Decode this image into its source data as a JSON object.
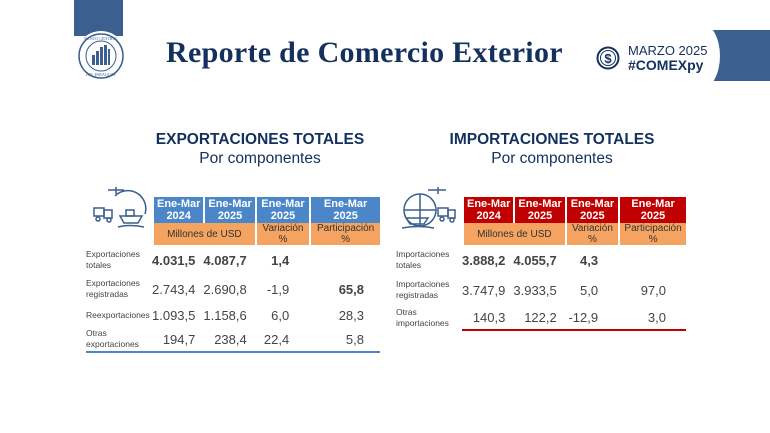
{
  "header": {
    "title": "Reporte de Comercio Exterior",
    "date": "MARZO 2025",
    "hashtag": "#COMEXpy",
    "logo_text": "BANCO CENTRAL DEL PARAGUAY",
    "brand_color": "#3b5f8e",
    "dollar_icon": "dollar-coin-icon"
  },
  "exports": {
    "title": "EXPORTACIONES TOTALES",
    "subtitle": "Por componentes",
    "accent": "#4a86c8",
    "columns": [
      "Ene-Mar\n2024",
      "Ene-Mar\n2025",
      "Ene-Mar\n2025",
      "Ene-Mar\n2025"
    ],
    "col_head": [
      "Ene-Mar",
      "2024",
      "Ene-Mar",
      "2025",
      "Ene-Mar",
      "2025",
      "Ene-Mar",
      "2025"
    ],
    "subheaders": [
      "Millones de USD",
      "Variación %",
      "Participación %"
    ],
    "rows": [
      {
        "label": "Exportaciones totales",
        "v2024": "4.031,5",
        "v2025": "4.087,7",
        "var": "1,4",
        "part": ""
      },
      {
        "label": "Exportaciones registradas",
        "v2024": "2.743,4",
        "v2025": "2.690,8",
        "var": "-1,9",
        "part": "65,8"
      },
      {
        "label": "Reexportaciones",
        "v2024": "1.093,5",
        "v2025": "1.158,6",
        "var": "6,0",
        "part": "28,3"
      },
      {
        "label": "Otras exportaciones",
        "v2024": "194,7",
        "v2025": "238,4",
        "var": "22,4",
        "part": "5,8"
      }
    ]
  },
  "imports": {
    "title": "IMPORTACIONES TOTALES",
    "subtitle": "Por componentes",
    "accent": "#c00000",
    "col_head": [
      "Ene-Mar",
      "2024",
      "Ene-Mar",
      "2025",
      "Ene-Mar",
      "2025",
      "Ene-Mar",
      "2025"
    ],
    "subheaders": [
      "Millones de USD",
      "Variación %",
      "Participación %"
    ],
    "rows": [
      {
        "label": "Importaciones totales",
        "v2024": "3.888,2",
        "v2025": "4.055,7",
        "var": "4,3",
        "part": ""
      },
      {
        "label": "Importaciones registradas",
        "v2024": "3.747,9",
        "v2025": "3.933,5",
        "var": "5,0",
        "part": "97,0"
      },
      {
        "label": "Otras importaciones",
        "v2024": "140,3",
        "v2025": "122,2",
        "var": "-12,9",
        "part": "3,0"
      }
    ]
  }
}
